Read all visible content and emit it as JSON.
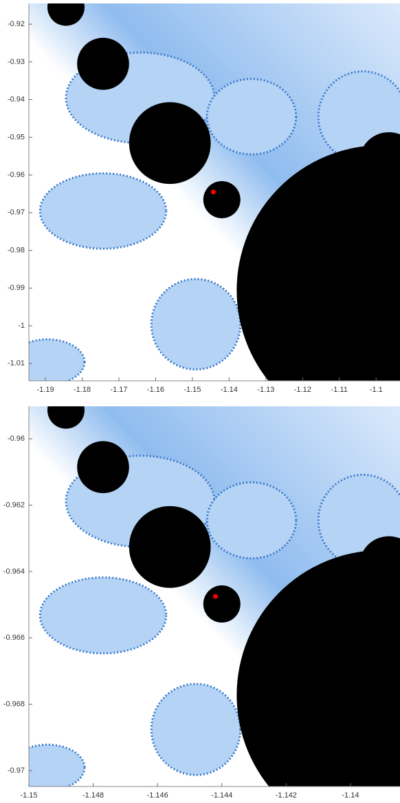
{
  "chart_data": [
    {
      "type": "scatter",
      "x": [
        -1.1443
      ],
      "values": [
        -0.9645
      ],
      "color": "#ff0000",
      "xlim": [
        -1.1945,
        -1.0935
      ],
      "ylim": [
        -1.0146,
        -0.9145
      ],
      "xticks": [
        -1.19,
        -1.18,
        -1.17,
        -1.16,
        -1.15,
        -1.14,
        -1.13,
        -1.12,
        -1.11,
        -1.1
      ],
      "yticks": [
        -1.01,
        -1,
        -0.99,
        -0.98,
        -0.97,
        -0.96,
        -0.95,
        -0.94,
        -0.93,
        -0.92
      ]
    },
    {
      "type": "scatter",
      "x": [
        -1.1442
      ],
      "values": [
        -0.96475
      ],
      "color": "#ff0000",
      "xlim": [
        -1.15,
        -1.13846
      ],
      "ylim": [
        -0.97048,
        -0.95902
      ],
      "xticks": [
        -1.15,
        -1.148,
        -1.146,
        -1.144,
        -1.142,
        -1.14
      ],
      "yticks": [
        -0.97,
        -0.968,
        -0.966,
        -0.964,
        -0.962,
        -0.96
      ]
    }
  ]
}
